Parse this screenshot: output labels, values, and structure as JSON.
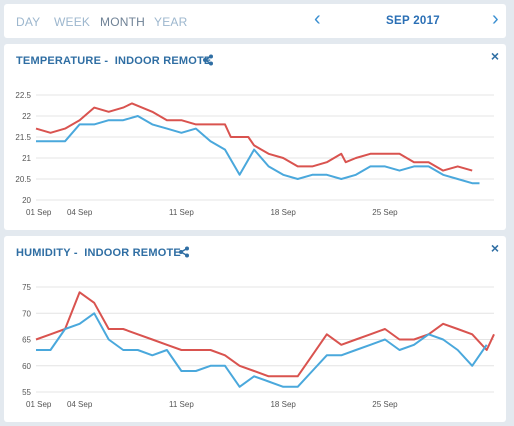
{
  "tabs": [
    {
      "label": "DAY",
      "active": false
    },
    {
      "label": "WEEK",
      "active": false
    },
    {
      "label": "MONTH",
      "active": true
    },
    {
      "label": "YEAR",
      "active": false
    }
  ],
  "nav": {
    "prev_icon": "chevron-left-icon",
    "next_icon": "chevron-right-icon",
    "period": "SEP 2017"
  },
  "panels": [
    {
      "title": "TEMPERATURE -  INDOOR REMOTE",
      "share_icon": "share-icon",
      "close_label": "×"
    },
    {
      "title": "HUMIDITY -  INDOOR REMOTE",
      "share_icon": "share-icon",
      "close_label": "×"
    }
  ],
  "colors": {
    "series_red": "#d9534f",
    "series_blue": "#4aa8dc",
    "accent": "#2f6ea3"
  },
  "chart_data": [
    {
      "type": "line",
      "title": "TEMPERATURE -  INDOOR REMOTE",
      "x": [
        1,
        2,
        3,
        4,
        5,
        6,
        7,
        8,
        9,
        10,
        11,
        12,
        13,
        14,
        15,
        16,
        17,
        18,
        19,
        20,
        21,
        22,
        23,
        24,
        25,
        26,
        27,
        28,
        29,
        30
      ],
      "xticks": [
        1,
        4,
        11,
        18,
        25
      ],
      "xtick_labels": [
        "01 Sep",
        "04 Sep",
        "11 Sep",
        "18 Sep",
        "25 Sep"
      ],
      "ylim": [
        20,
        22.5
      ],
      "yticks": [
        "20",
        "20.5",
        "21",
        "21.5",
        "22",
        "22.5"
      ],
      "grid": true,
      "series": [
        {
          "color": "#d9534f",
          "points": [
            [
              1,
              21.7
            ],
            [
              2,
              21.6
            ],
            [
              3,
              21.7
            ],
            [
              4,
              21.9
            ],
            [
              5,
              22.2
            ],
            [
              6,
              22.1
            ],
            [
              7,
              22.2
            ],
            [
              7.6,
              22.3
            ],
            [
              9,
              22.1
            ],
            [
              10,
              21.9
            ],
            [
              11,
              21.9
            ],
            [
              12,
              21.8
            ],
            [
              13,
              21.8
            ],
            [
              14,
              21.8
            ],
            [
              14.4,
              21.5
            ],
            [
              15,
              21.5
            ],
            [
              15.6,
              21.5
            ],
            [
              16,
              21.3
            ],
            [
              16.5,
              21.2
            ],
            [
              17,
              21.1
            ],
            [
              18,
              21.0
            ],
            [
              19,
              20.8
            ],
            [
              20,
              20.8
            ],
            [
              21,
              20.9
            ],
            [
              22,
              21.1
            ],
            [
              22.3,
              20.9
            ],
            [
              23,
              21.0
            ],
            [
              24,
              21.1
            ],
            [
              25,
              21.1
            ],
            [
              26,
              21.1
            ],
            [
              27,
              20.9
            ],
            [
              28,
              20.9
            ],
            [
              29,
              20.7
            ],
            [
              30,
              20.8
            ],
            [
              31,
              20.7
            ]
          ]
        },
        {
          "color": "#4aa8dc",
          "points": [
            [
              1,
              21.4
            ],
            [
              2,
              21.4
            ],
            [
              3,
              21.4
            ],
            [
              4,
              21.8
            ],
            [
              5,
              21.8
            ],
            [
              6,
              21.9
            ],
            [
              7,
              21.9
            ],
            [
              8,
              22.0
            ],
            [
              9,
              21.8
            ],
            [
              10,
              21.7
            ],
            [
              11,
              21.6
            ],
            [
              12,
              21.7
            ],
            [
              13,
              21.4
            ],
            [
              14,
              21.2
            ],
            [
              15,
              20.6
            ],
            [
              16,
              21.2
            ],
            [
              17,
              20.8
            ],
            [
              18,
              20.6
            ],
            [
              19,
              20.5
            ],
            [
              20,
              20.6
            ],
            [
              21,
              20.6
            ],
            [
              22,
              20.5
            ],
            [
              23,
              20.6
            ],
            [
              24,
              20.8
            ],
            [
              25,
              20.8
            ],
            [
              26,
              20.7
            ],
            [
              27,
              20.8
            ],
            [
              28,
              20.8
            ],
            [
              29,
              20.6
            ],
            [
              30,
              20.5
            ],
            [
              31,
              20.4
            ],
            [
              31.5,
              20.4
            ]
          ]
        }
      ]
    },
    {
      "type": "line",
      "title": "HUMIDITY -  INDOOR REMOTE",
      "x": [
        1,
        2,
        3,
        4,
        5,
        6,
        7,
        8,
        9,
        10,
        11,
        12,
        13,
        14,
        15,
        16,
        17,
        18,
        19,
        20,
        21,
        22,
        23,
        24,
        25,
        26,
        27,
        28,
        29,
        30
      ],
      "xticks": [
        1,
        4,
        11,
        18,
        25
      ],
      "xtick_labels": [
        "01 Sep",
        "04 Sep",
        "11 Sep",
        "18 Sep",
        "25 Sep"
      ],
      "ylim": [
        55,
        75
      ],
      "yticks": [
        "55",
        "60",
        "65",
        "70",
        "75"
      ],
      "grid": true,
      "series": [
        {
          "color": "#d9534f",
          "points": [
            [
              1,
              65
            ],
            [
              2,
              66
            ],
            [
              3,
              67
            ],
            [
              4,
              74
            ],
            [
              5,
              72
            ],
            [
              6,
              67
            ],
            [
              7,
              67
            ],
            [
              8,
              66
            ],
            [
              9,
              65
            ],
            [
              10,
              64
            ],
            [
              11,
              63
            ],
            [
              12,
              63
            ],
            [
              13,
              63
            ],
            [
              14,
              62
            ],
            [
              15,
              60
            ],
            [
              16,
              59
            ],
            [
              17,
              58
            ],
            [
              18,
              58
            ],
            [
              19,
              58
            ],
            [
              20,
              62
            ],
            [
              21,
              66
            ],
            [
              22,
              64
            ],
            [
              23,
              65
            ],
            [
              24,
              66
            ],
            [
              25,
              67
            ],
            [
              26,
              65
            ],
            [
              27,
              65
            ],
            [
              28,
              66
            ],
            [
              29,
              68
            ],
            [
              30,
              67
            ],
            [
              31,
              66
            ],
            [
              32,
              63
            ],
            [
              32.5,
              66
            ]
          ]
        },
        {
          "color": "#4aa8dc",
          "points": [
            [
              1,
              63
            ],
            [
              2,
              63
            ],
            [
              3,
              67
            ],
            [
              4,
              68
            ],
            [
              5,
              70
            ],
            [
              6,
              65
            ],
            [
              7,
              63
            ],
            [
              8,
              63
            ],
            [
              9,
              62
            ],
            [
              10,
              63
            ],
            [
              11,
              59
            ],
            [
              12,
              59
            ],
            [
              13,
              60
            ],
            [
              14,
              60
            ],
            [
              15,
              56
            ],
            [
              16,
              58
            ],
            [
              17,
              57
            ],
            [
              18,
              56
            ],
            [
              19,
              56
            ],
            [
              20,
              59
            ],
            [
              21,
              62
            ],
            [
              22,
              62
            ],
            [
              23,
              63
            ],
            [
              24,
              64
            ],
            [
              25,
              65
            ],
            [
              26,
              63
            ],
            [
              27,
              64
            ],
            [
              28,
              66
            ],
            [
              29,
              65
            ],
            [
              30,
              63
            ],
            [
              31,
              60
            ],
            [
              32,
              64
            ]
          ]
        }
      ]
    }
  ]
}
